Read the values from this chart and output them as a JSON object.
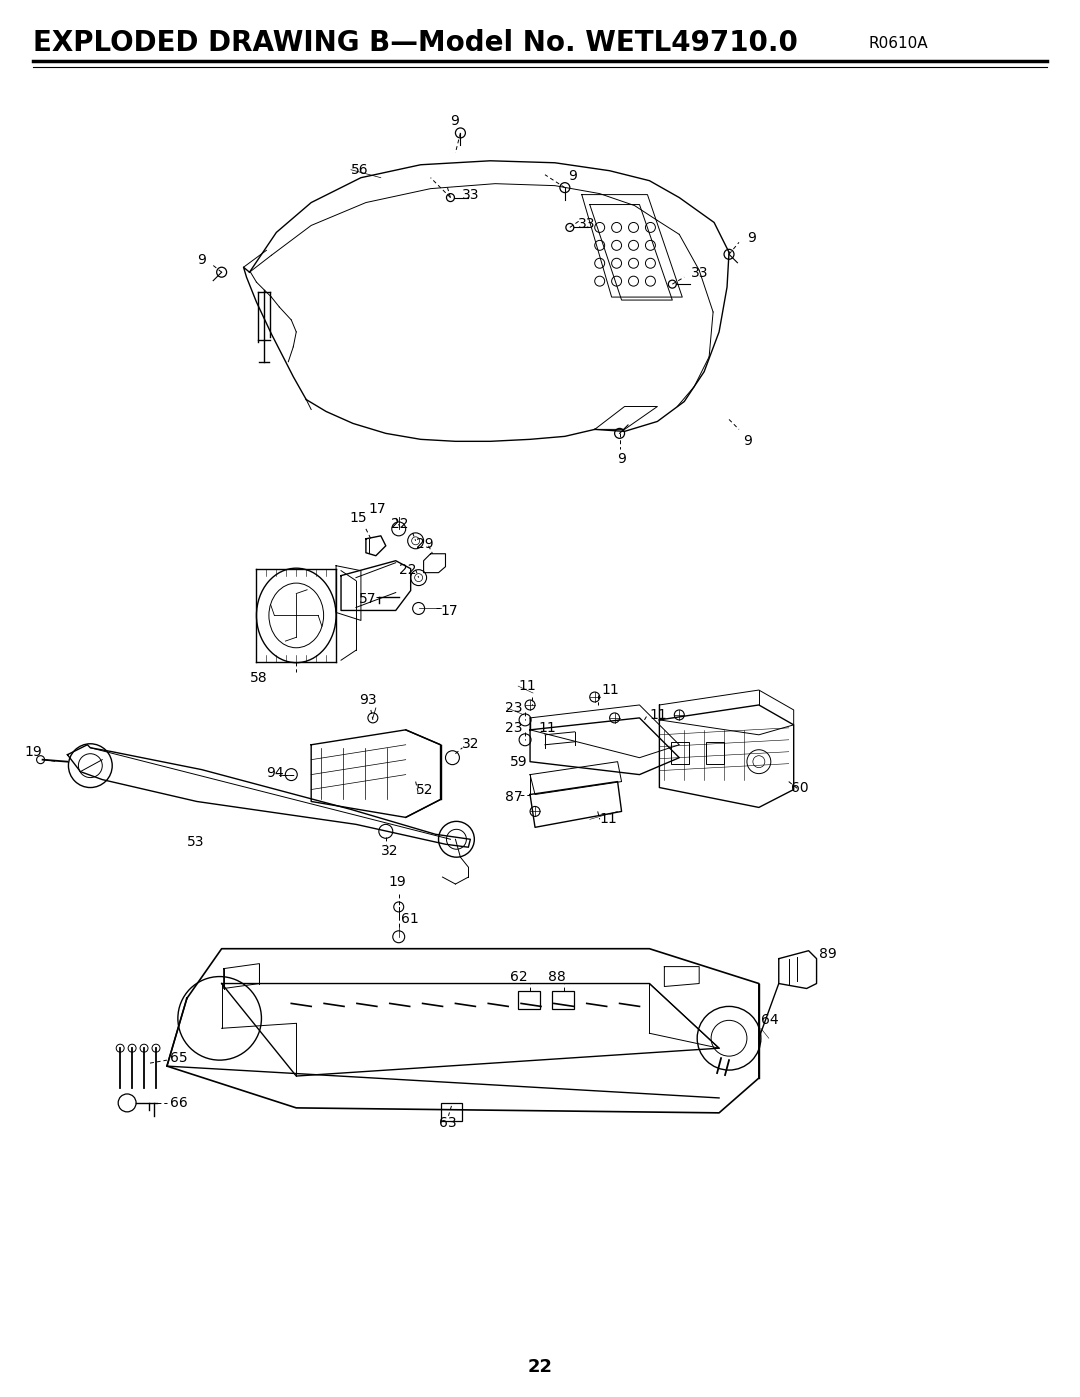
{
  "title_main": "EXPLODED DRAWING B—Model No. WETL49710.0",
  "title_code": "R0610A",
  "page_number": "22",
  "background_color": "#ffffff",
  "line_color": "#000000",
  "title_fontsize": 20,
  "code_fontsize": 11,
  "label_fontsize": 10,
  "page_num_fontsize": 13,
  "fig_width": 10.8,
  "fig_height": 13.97,
  "dpi": 100
}
